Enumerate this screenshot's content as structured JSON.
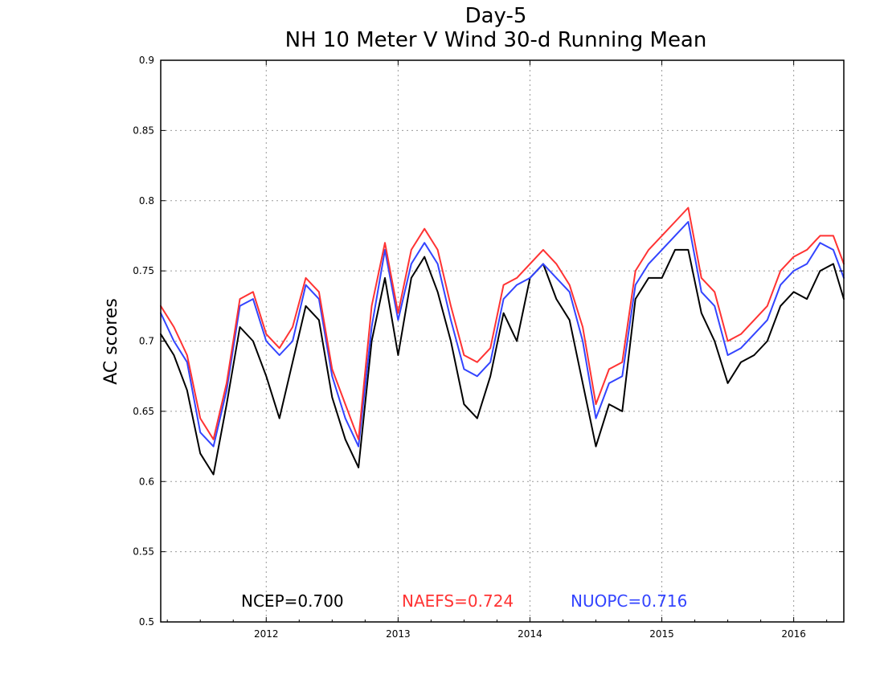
{
  "chart_data": {
    "type": "line",
    "title": "Day-5",
    "subtitle": "NH 10 Meter V Wind 30-d Running Mean",
    "xlabel": "",
    "ylabel": "AC scores",
    "xlim": [
      2011.2,
      2016.38
    ],
    "ylim": [
      0.5,
      0.9
    ],
    "x_ticks": [
      "2012",
      "2013",
      "2014",
      "2015",
      "2016"
    ],
    "y_ticks": [
      "0.5",
      "0.55",
      "0.6",
      "0.65",
      "0.7",
      "0.75",
      "0.8",
      "0.85",
      "0.9"
    ],
    "grid": true,
    "legend_position": "bottom-center",
    "x": [
      2011.2,
      2011.3,
      2011.4,
      2011.5,
      2011.6,
      2011.7,
      2011.8,
      2011.9,
      2012.0,
      2012.1,
      2012.2,
      2012.3,
      2012.4,
      2012.5,
      2012.6,
      2012.7,
      2012.8,
      2012.9,
      2013.0,
      2013.1,
      2013.2,
      2013.3,
      2013.4,
      2013.5,
      2013.6,
      2013.7,
      2013.8,
      2013.9,
      2014.0,
      2014.1,
      2014.2,
      2014.3,
      2014.4,
      2014.5,
      2014.6,
      2014.7,
      2014.8,
      2014.9,
      2015.0,
      2015.1,
      2015.2,
      2015.3,
      2015.4,
      2015.5,
      2015.6,
      2015.7,
      2015.8,
      2015.9,
      2016.0,
      2016.1,
      2016.2,
      2016.3,
      2016.38
    ],
    "series": [
      {
        "name": "NCEP",
        "color": "#000000",
        "summary": "NCEP=0.700",
        "values": [
          0.705,
          0.69,
          0.665,
          0.62,
          0.605,
          0.655,
          0.71,
          0.7,
          0.675,
          0.645,
          0.685,
          0.725,
          0.715,
          0.66,
          0.63,
          0.61,
          0.7,
          0.745,
          0.69,
          0.745,
          0.76,
          0.735,
          0.7,
          0.655,
          0.645,
          0.675,
          0.72,
          0.7,
          0.745,
          0.755,
          0.73,
          0.715,
          0.67,
          0.625,
          0.655,
          0.65,
          0.73,
          0.745,
          0.745,
          0.765,
          0.765,
          0.72,
          0.7,
          0.67,
          0.685,
          0.69,
          0.7,
          0.725,
          0.735,
          0.73,
          0.75,
          0.755,
          0.73
        ]
      },
      {
        "name": "NAEFS",
        "color": "#ff3333",
        "summary": "NAEFS=0.724",
        "values": [
          0.725,
          0.71,
          0.69,
          0.645,
          0.63,
          0.67,
          0.73,
          0.735,
          0.705,
          0.695,
          0.71,
          0.745,
          0.735,
          0.68,
          0.655,
          0.63,
          0.725,
          0.77,
          0.72,
          0.765,
          0.78,
          0.765,
          0.725,
          0.69,
          0.685,
          0.695,
          0.74,
          0.745,
          0.755,
          0.765,
          0.755,
          0.74,
          0.71,
          0.655,
          0.68,
          0.685,
          0.75,
          0.765,
          0.775,
          0.785,
          0.795,
          0.745,
          0.735,
          0.7,
          0.705,
          0.715,
          0.725,
          0.75,
          0.76,
          0.765,
          0.775,
          0.775,
          0.755
        ]
      },
      {
        "name": "NUOPC",
        "color": "#3344ff",
        "summary": "NUOPC=0.716",
        "values": [
          0.72,
          0.7,
          0.685,
          0.635,
          0.625,
          0.665,
          0.725,
          0.73,
          0.7,
          0.69,
          0.7,
          0.74,
          0.73,
          0.675,
          0.645,
          0.625,
          0.71,
          0.765,
          0.715,
          0.755,
          0.77,
          0.755,
          0.715,
          0.68,
          0.675,
          0.685,
          0.73,
          0.74,
          0.745,
          0.755,
          0.745,
          0.735,
          0.7,
          0.645,
          0.67,
          0.675,
          0.74,
          0.755,
          0.765,
          0.775,
          0.785,
          0.735,
          0.725,
          0.69,
          0.695,
          0.705,
          0.715,
          0.74,
          0.75,
          0.755,
          0.77,
          0.765,
          0.745
        ]
      }
    ]
  }
}
